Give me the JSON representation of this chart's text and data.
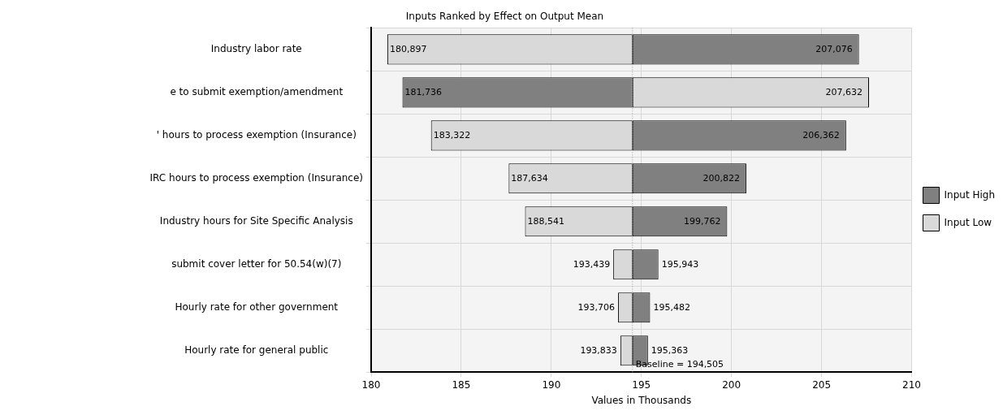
{
  "chart_data": {
    "type": "bar",
    "orientation": "horizontal",
    "title": "Inputs Ranked by Effect on Output Mean",
    "xlabel": "Values in Thousands",
    "categories": [
      "Industry labor rate",
      "e to submit exemption/amendment",
      "' hours to process exemption (Insurance)",
      "IRC hours to process exemption (Insurance)",
      "Industry hours for Site Specific Analysis",
      "submit cover letter for 50.54(w)(7)",
      "Hourly rate for other government",
      "Hourly rate for general public"
    ],
    "series": [
      {
        "name": "Input High",
        "color": "#808080",
        "base": [
          194.505,
          181.736,
          194.505,
          194.505,
          194.505,
          194.505,
          194.505,
          194.505
        ],
        "values": [
          12.571,
          12.769,
          11.857,
          6.317,
          5.257,
          1.438,
          0.977,
          0.858
        ]
      },
      {
        "name": "Input Low",
        "color": "#d9d9d9",
        "base": [
          180.897,
          194.505,
          183.322,
          187.634,
          188.541,
          193.439,
          193.706,
          193.833
        ],
        "values": [
          13.608,
          13.127,
          11.183,
          6.871,
          5.964,
          1.066,
          0.799,
          0.672
        ]
      }
    ],
    "annotations": [
      {
        "text": "180,897",
        "x": 180.897,
        "y": "Industry labor rate"
      },
      {
        "text": "207,076",
        "x": 207.076,
        "y": "Industry labor rate"
      },
      {
        "text": "181,736",
        "x": 181.736,
        "y": "e to submit exemption/amendment"
      },
      {
        "text": "207,632",
        "x": 207.632,
        "y": "e to submit exemption/amendment"
      },
      {
        "text": "183,322",
        "x": 183.322,
        "y": "' hours to process exemption (Insurance)"
      },
      {
        "text": "206,362",
        "x": 206.362,
        "y": "' hours to process exemption (Insurance)"
      },
      {
        "text": "187,634",
        "x": 187.634,
        "y": "IRC hours to process exemption (Insurance)"
      },
      {
        "text": "200,822",
        "x": 200.822,
        "y": "IRC hours to process exemption (Insurance)"
      },
      {
        "text": "188,541",
        "x": 188.541,
        "y": "Industry hours for Site Specific Analysis"
      },
      {
        "text": "199,762",
        "x": 199.762,
        "y": "Industry hours for Site Specific Analysis"
      },
      {
        "text": "193,439",
        "x": 193.439,
        "y": "submit cover letter for 50.54(w)(7)"
      },
      {
        "text": "195,943",
        "x": 195.943,
        "y": "submit cover letter for 50.54(w)(7)"
      },
      {
        "text": "193,706",
        "x": 193.706,
        "y": "Hourly rate for other government"
      },
      {
        "text": "195,482",
        "x": 195.482,
        "y": "Hourly rate for other government"
      },
      {
        "text": "193,833",
        "x": 193.833,
        "y": "Hourly rate for general public"
      },
      {
        "text": "195,363",
        "x": 195.363,
        "y": "Hourly rate for general public"
      }
    ],
    "xlim": [
      180,
      210
    ],
    "xticks": [
      180,
      185,
      190,
      195,
      200,
      205,
      210
    ],
    "ref_lines": [
      {
        "axis": "x",
        "value": 194.505,
        "label": "Baseline = 194,505",
        "line_style": "dotted"
      }
    ],
    "grid": true,
    "legend": "right"
  }
}
